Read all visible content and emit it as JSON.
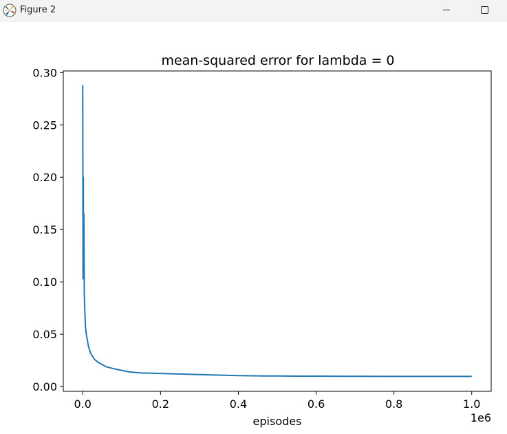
{
  "window": {
    "title": "Figure 2"
  },
  "chart_data": {
    "type": "line",
    "title": "mean-squared error for lambda = 0",
    "xlabel": "episodes",
    "ylabel": "",
    "x_offset_text": "1e6",
    "xlim": [
      -0.05,
      1.05
    ],
    "ylim": [
      -0.0045,
      0.3015
    ],
    "xticks": [
      0.0,
      0.2,
      0.4,
      0.6,
      0.8,
      1.0
    ],
    "xtick_labels": [
      "0.0",
      "0.2",
      "0.4",
      "0.6",
      "0.8",
      "1.0"
    ],
    "yticks": [
      0.0,
      0.05,
      0.1,
      0.15,
      0.2,
      0.25,
      0.3
    ],
    "ytick_labels": [
      "0.00",
      "0.05",
      "0.10",
      "0.15",
      "0.20",
      "0.25",
      "0.30"
    ],
    "grid": false,
    "line_color": "#1f77b4",
    "series": [
      {
        "x": [
          0.0,
          0.0008,
          0.0015,
          0.002,
          0.003,
          0.004,
          0.005,
          0.007,
          0.01,
          0.015,
          0.02,
          0.03,
          0.04,
          0.05,
          0.06,
          0.08,
          0.1,
          0.12,
          0.15,
          0.2,
          0.25,
          0.3,
          0.35,
          0.4,
          0.45,
          0.5,
          0.55,
          0.6,
          0.7,
          0.8,
          0.9,
          1.0
        ],
        "y": [
          0.288,
          0.103,
          0.2,
          0.13,
          0.165,
          0.09,
          0.075,
          0.057,
          0.048,
          0.038,
          0.032,
          0.026,
          0.023,
          0.021,
          0.019,
          0.017,
          0.0155,
          0.014,
          0.013,
          0.0125,
          0.012,
          0.0115,
          0.011,
          0.0105,
          0.0102,
          0.0101,
          0.01,
          0.01,
          0.0098,
          0.0097,
          0.0097,
          0.0097
        ]
      }
    ]
  }
}
